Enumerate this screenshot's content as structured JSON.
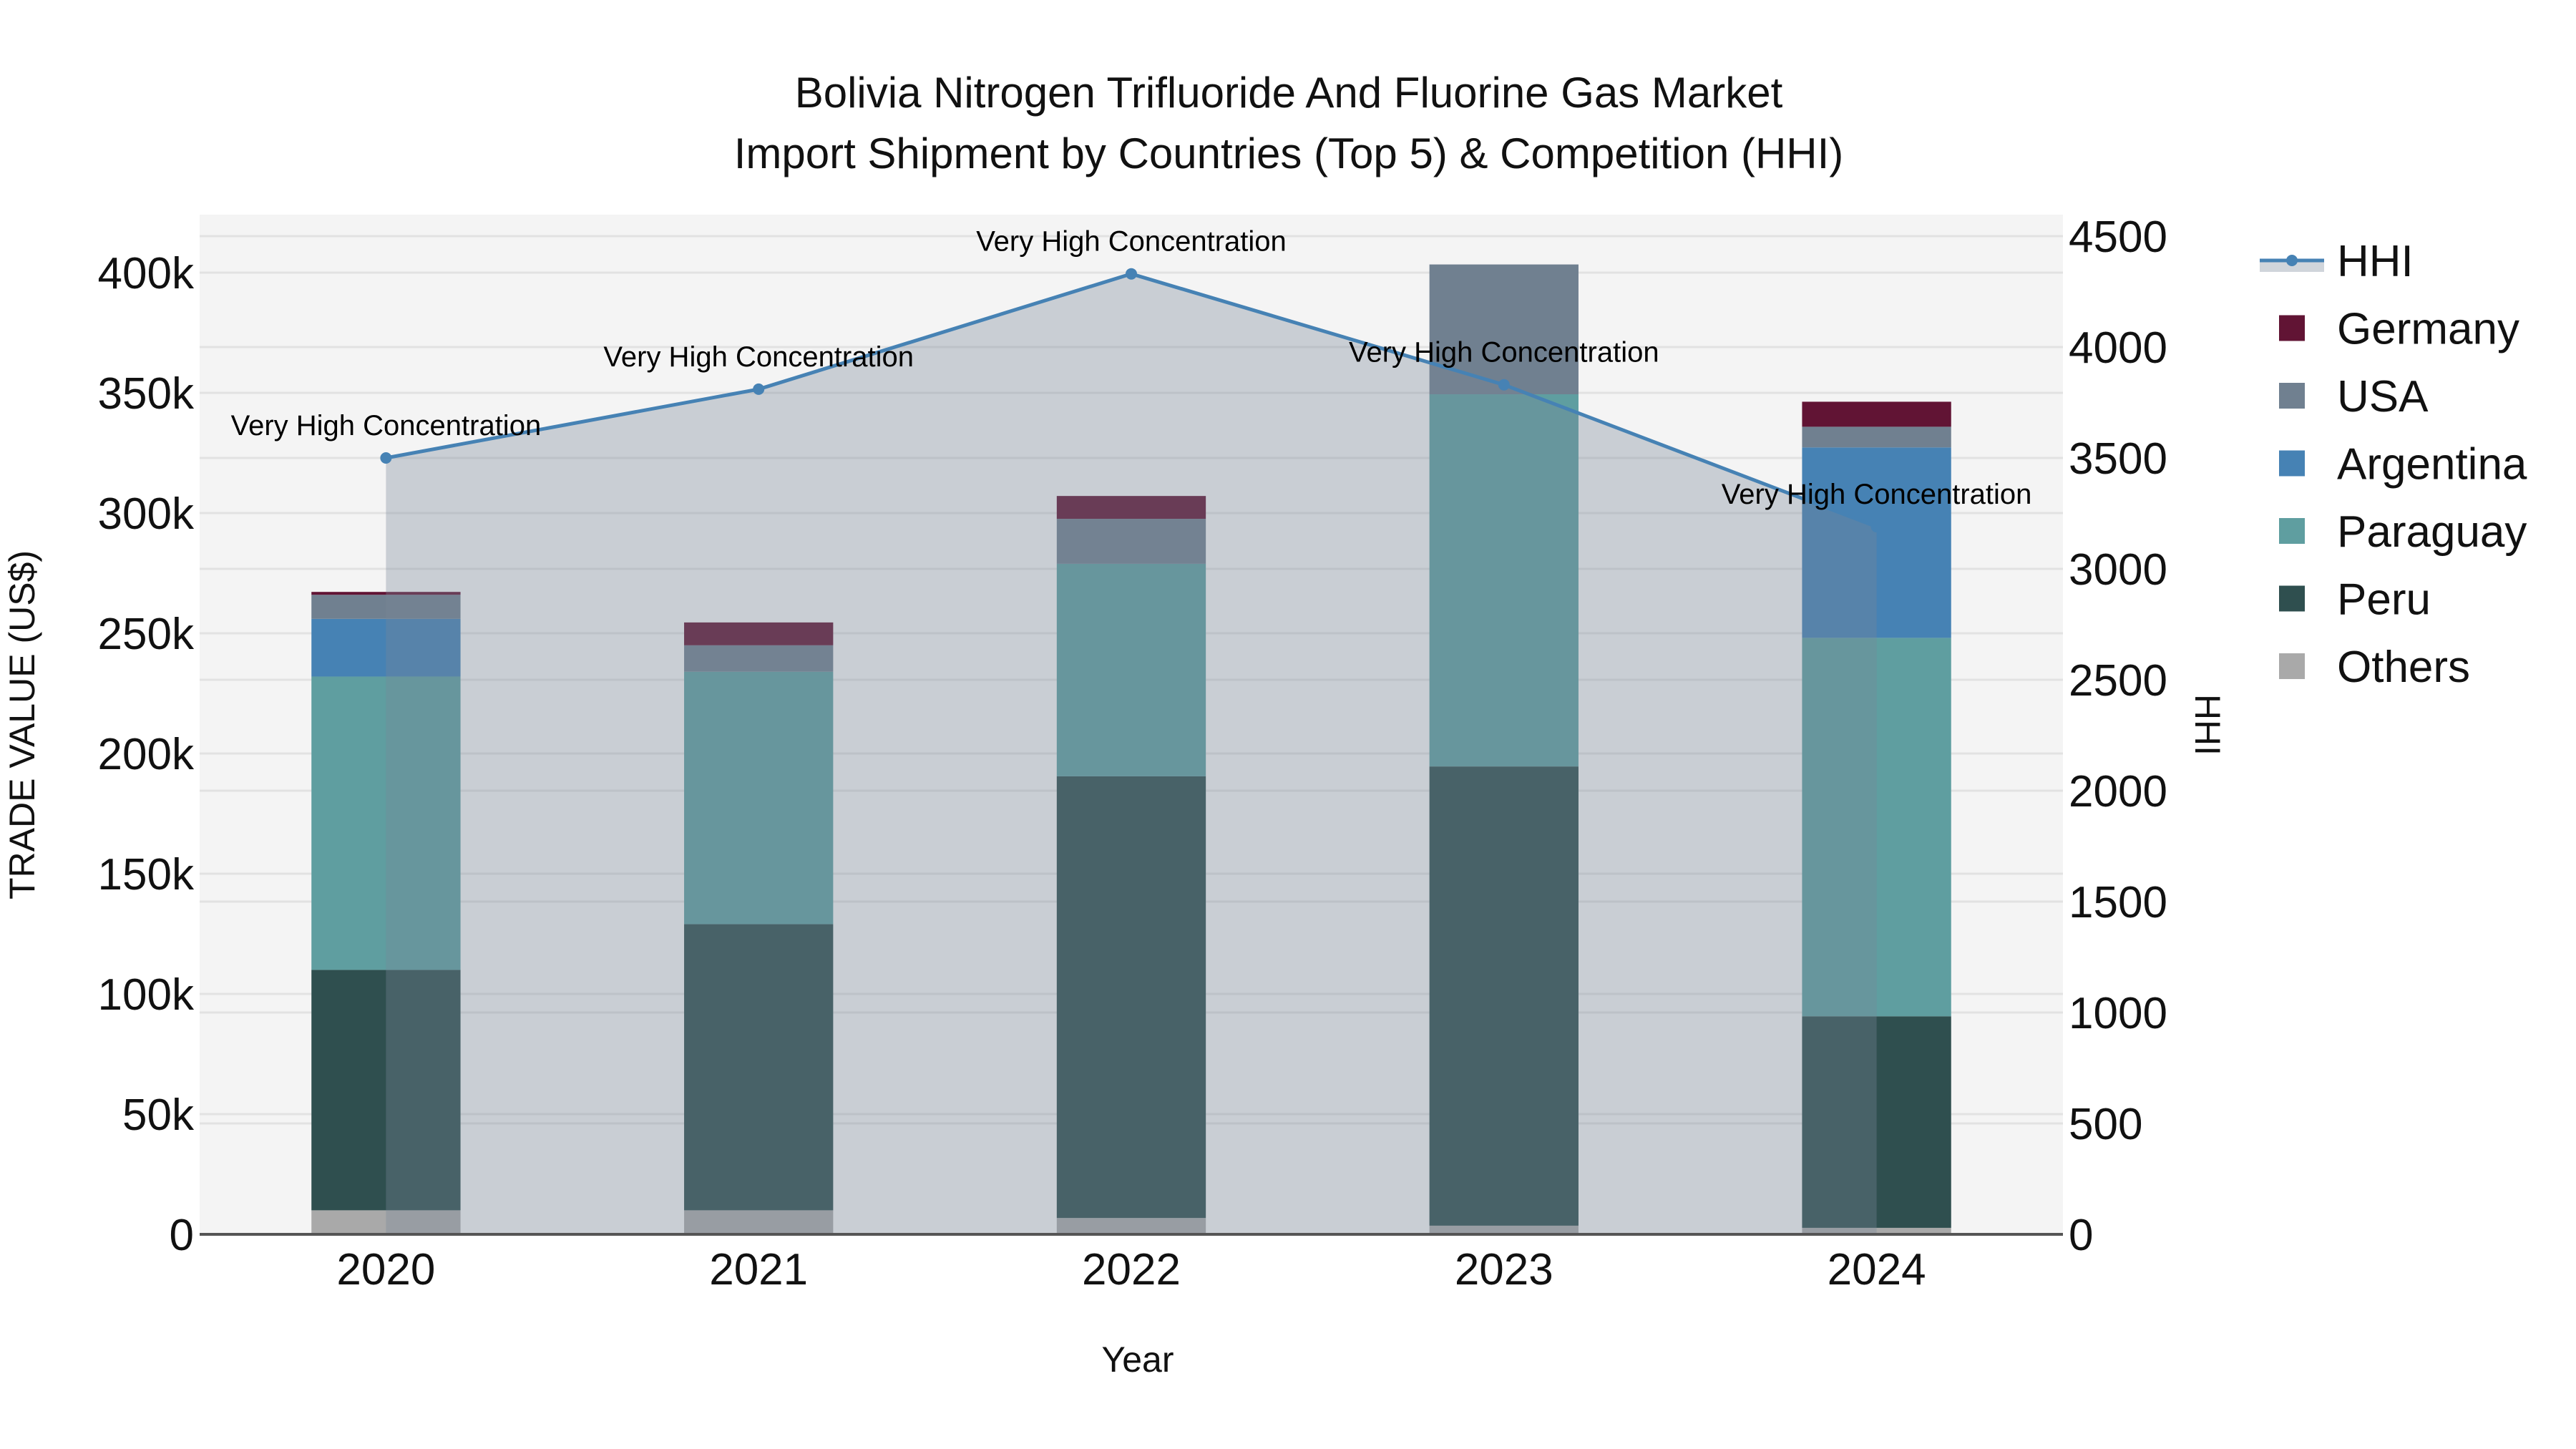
{
  "chart_data": {
    "type": "bar",
    "subtype": "stacked bar + line/area (dual axis)",
    "title": "Bolivia Nitrogen Trifluoride And Fluorine Gas Market",
    "subtitle": "Import Shipment by Countries (Top 5) & Competition (HHI)",
    "xlabel": "Year",
    "ylabel": "TRADE VALUE (US$)",
    "y2label": "HHI",
    "categories": [
      "2020",
      "2021",
      "2022",
      "2023",
      "2024"
    ],
    "series": [
      {
        "name": "Others",
        "color": "#A9A9A9",
        "values": [
          10000,
          10000,
          6800,
          3600,
          2700
        ]
      },
      {
        "name": "Peru",
        "color": "#2F4F4F",
        "values": [
          100000,
          119000,
          183700,
          191000,
          88000
        ]
      },
      {
        "name": "Paraguay",
        "color": "#5F9EA0",
        "values": [
          122000,
          105000,
          88400,
          154800,
          157400
        ]
      },
      {
        "name": "Argentina",
        "color": "#4682B4",
        "values": [
          24000,
          0,
          0,
          0,
          79200
        ]
      },
      {
        "name": "USA",
        "color": "#708090",
        "values": [
          10000,
          11000,
          18700,
          54000,
          8600
        ]
      },
      {
        "name": "Germany",
        "color": "#611434",
        "values": [
          1200,
          9500,
          9500,
          0,
          10400
        ]
      }
    ],
    "hhi": {
      "name": "HHI",
      "axis": "right",
      "line_color": "#4682B4",
      "fill_color": "rgba(119,136,153,0.35)",
      "values": [
        3500,
        3810,
        4330,
        3830,
        3190
      ],
      "annotations": [
        "Very High Concentration",
        "Very High Concentration",
        "Very High Concentration",
        "Very High Concentration",
        "Very High Concentration"
      ]
    },
    "ylim": [
      0,
      425000
    ],
    "y2lim": [
      0,
      4650
    ],
    "yticks": [
      0,
      50000,
      100000,
      150000,
      200000,
      250000,
      300000,
      350000,
      400000
    ],
    "ytick_labels": [
      "0",
      "50k",
      "100k",
      "150k",
      "200k",
      "250k",
      "300k",
      "350k",
      "400k"
    ],
    "y2ticks": [
      0,
      500,
      1000,
      1500,
      2000,
      2500,
      3000,
      3500,
      4000,
      4500
    ],
    "y2tick_labels": [
      "0",
      "500",
      "1000",
      "1500",
      "2000",
      "2500",
      "3000",
      "3500",
      "4000",
      "4500"
    ],
    "grid": true,
    "legend_position": "right",
    "legend": [
      "HHI",
      "Germany",
      "USA",
      "Argentina",
      "Paraguay",
      "Peru",
      "Others"
    ]
  },
  "title": {
    "line1": "Bolivia Nitrogen Trifluoride And Fluorine Gas Market",
    "line2": "Import Shipment by Countries (Top 5) & Competition (HHI)"
  },
  "axes": {
    "x_title": "Year",
    "y_title": "TRADE VALUE (US$)",
    "y2_title": "HHI"
  },
  "legend": {
    "items": [
      {
        "label": "HHI",
        "type": "line",
        "color": "#4682B4"
      },
      {
        "label": "Germany",
        "type": "box",
        "color": "#611434"
      },
      {
        "label": "USA",
        "type": "box",
        "color": "#708090"
      },
      {
        "label": "Argentina",
        "type": "box",
        "color": "#4682B4"
      },
      {
        "label": "Paraguay",
        "type": "box",
        "color": "#5F9EA0"
      },
      {
        "label": "Peru",
        "type": "box",
        "color": "#2F4F4F"
      },
      {
        "label": "Others",
        "type": "box",
        "color": "#A9A9A9"
      }
    ]
  },
  "colors": {
    "plot_bg": "#F4F4F4",
    "grid": "#E2E2E2",
    "axis_line": "#555555"
  }
}
